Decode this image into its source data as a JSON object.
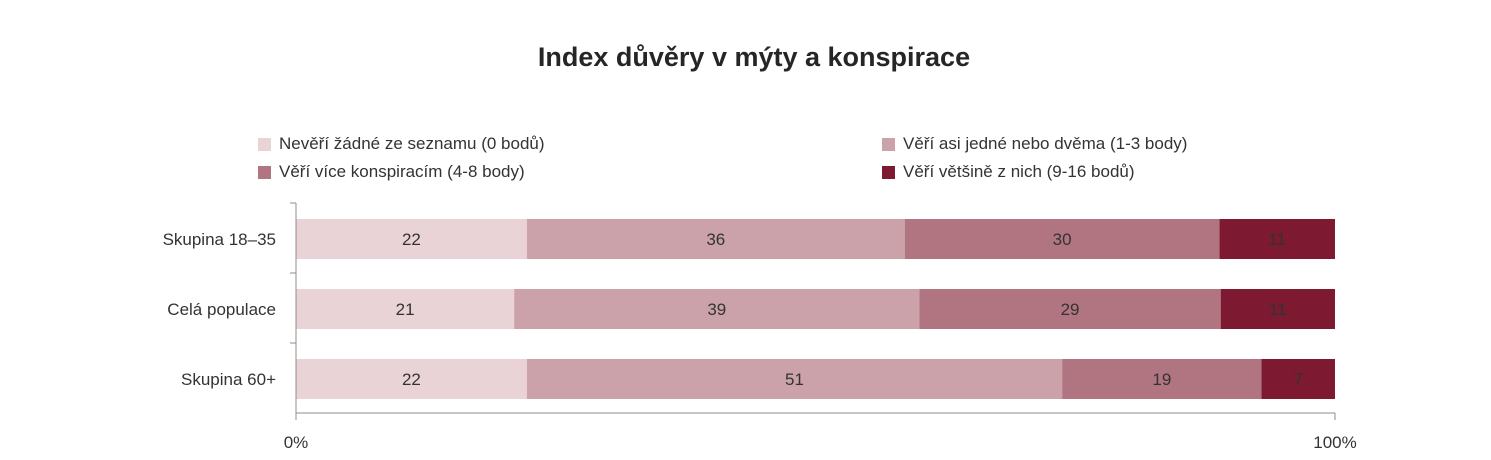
{
  "chart_data": {
    "type": "bar",
    "orientation": "horizontal",
    "stacked": true,
    "title": "Index důvěry v mýty a konspirace",
    "categories": [
      "Skupina 18–35",
      "Celá populace",
      "Skupina 60+"
    ],
    "series": [
      {
        "name": "Nevěří žádné ze seznamu (0 bodů)",
        "values": [
          22,
          21,
          22
        ],
        "color": "#ead3d7"
      },
      {
        "name": "Věří asi jedné nebo dvěma (1-3 body)",
        "values": [
          36,
          39,
          51
        ],
        "color": "#cba2a9"
      },
      {
        "name": "Věří více konspiracím  (4-8 body)",
        "values": [
          30,
          29,
          19
        ],
        "color": "#b07581"
      },
      {
        "name": "Věří většině z nich  (9-16 bodů)",
        "values": [
          11,
          11,
          7
        ],
        "color": "#7d1931"
      }
    ],
    "xlim": [
      0,
      100
    ],
    "x_ticks": [
      "0%",
      "100%"
    ],
    "grid": false,
    "legend_position": "top"
  }
}
